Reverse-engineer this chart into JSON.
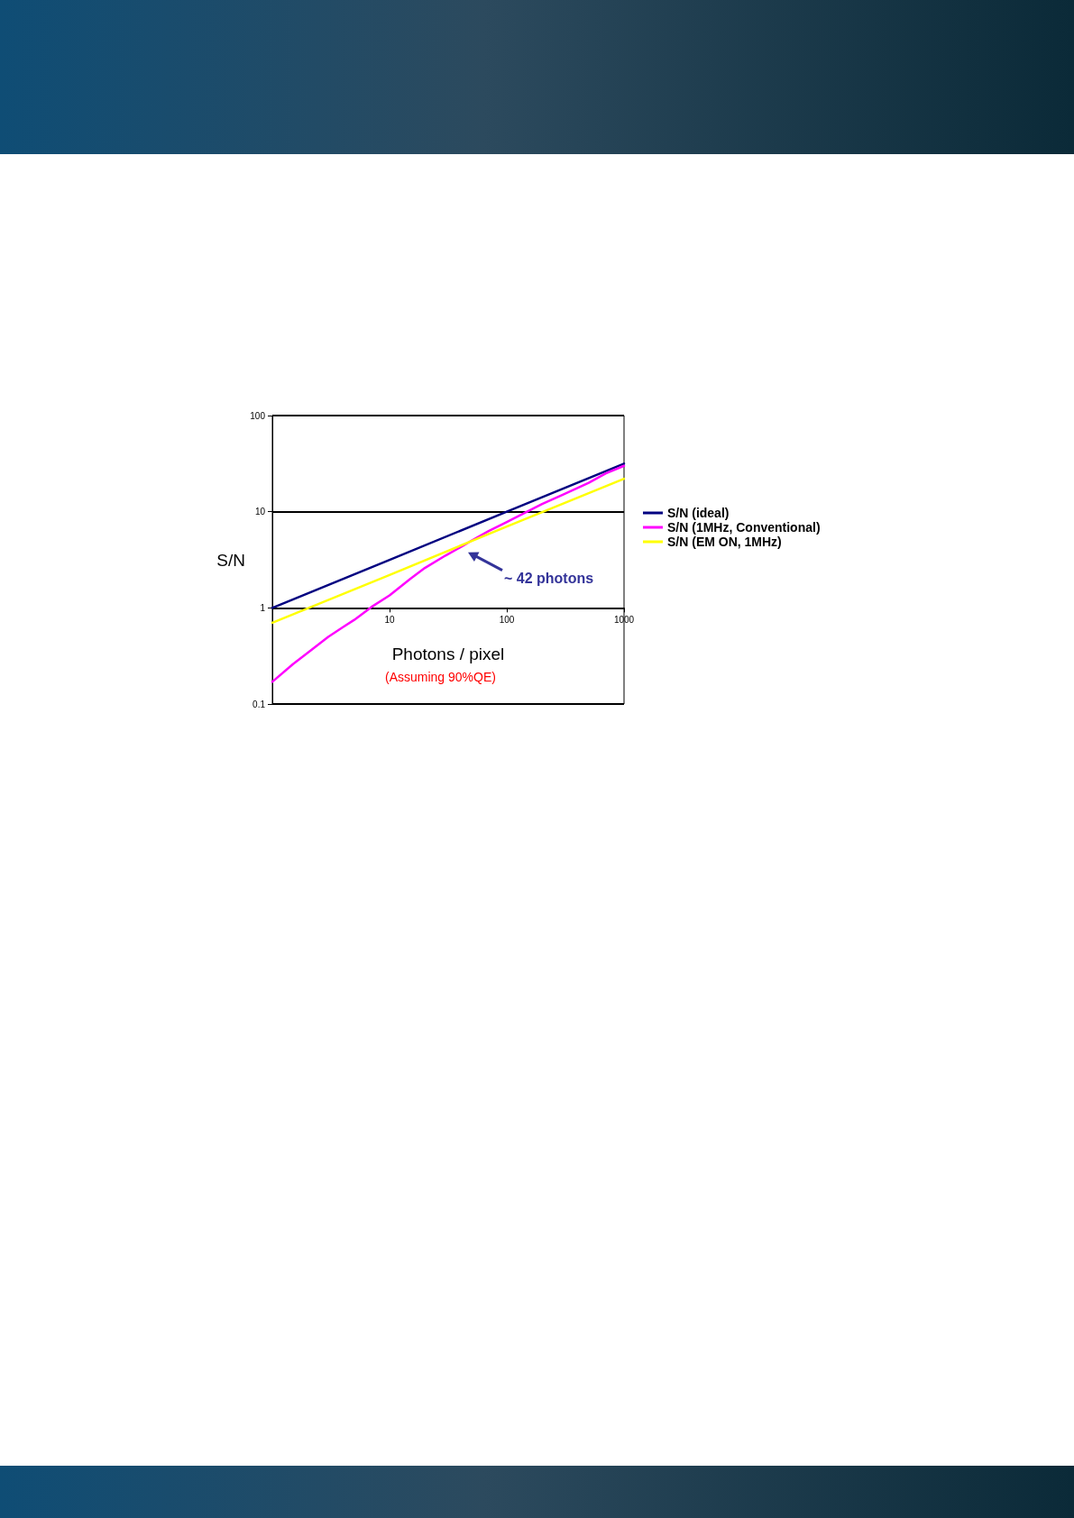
{
  "chart_data": {
    "type": "line",
    "xlabel": "Photons / pixel",
    "ylabel": "S/N",
    "log": "xy",
    "grid": "y",
    "legend": "right",
    "marker": "none",
    "line_style": "solid",
    "xlim": [
      1,
      1000
    ],
    "xticks": [
      {
        "value": 1,
        "label": null
      },
      10,
      100,
      1000
    ],
    "ylim": [
      0.1,
      100
    ],
    "yticks": [
      0.1,
      1,
      10,
      100
    ],
    "series": [
      {
        "name": "S/N (ideal)",
        "color": "#000080",
        "x": [
          1,
          10,
          100,
          1000
        ],
        "values": [
          1,
          3.16,
          10,
          31.6
        ]
      },
      {
        "name": "S/N (1MHz, Conventional)",
        "color": "#ff00ff",
        "x": [
          1,
          1.5,
          2,
          3,
          4,
          5,
          7,
          10,
          15,
          20,
          30,
          42,
          50,
          70,
          100,
          200,
          300,
          500,
          700,
          1000
        ],
        "values": [
          0.17,
          0.26,
          0.34,
          0.5,
          0.63,
          0.75,
          1.02,
          1.35,
          2,
          2.6,
          3.5,
          4.4,
          5,
          6.3,
          7.8,
          12,
          15,
          20,
          25,
          30
        ]
      },
      {
        "name": "S/N (EM ON, 1MHz)",
        "color": "#ffff00",
        "x": [
          1,
          10,
          100,
          1000
        ],
        "values": [
          0.7,
          2.2,
          7,
          22
        ]
      }
    ],
    "annotations": [
      "~ 42 photons",
      "(Assuming 90%QE)"
    ]
  }
}
